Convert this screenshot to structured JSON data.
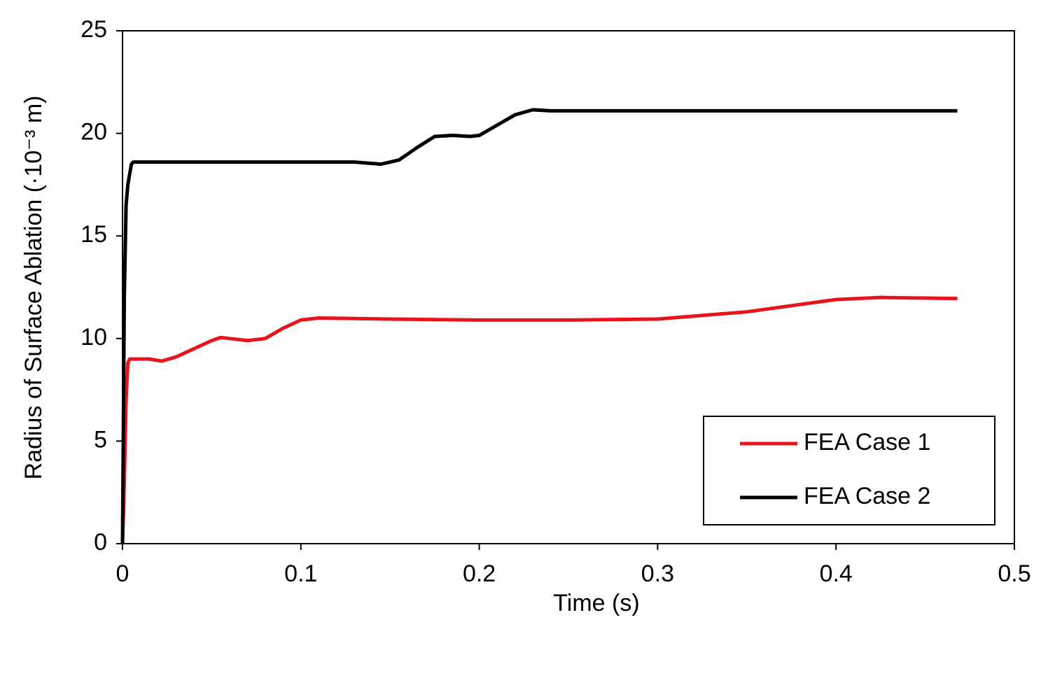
{
  "chart_data": {
    "type": "line",
    "x_label": "Time (s)",
    "y_label": "Radius of Surface Ablation (·10⁻³ m)",
    "xlim": [
      0,
      0.5
    ],
    "xticks": [
      0,
      0.1,
      0.2,
      0.3,
      0.4,
      0.5
    ],
    "ylim": [
      0,
      25
    ],
    "yticks": [
      0,
      5,
      10,
      15,
      20,
      25
    ],
    "grid": false,
    "legend": "lower right",
    "series": [
      {
        "name": "FEA Case 1",
        "color": "#e8141c",
        "x": [
          0,
          0.001,
          0.002,
          0.003,
          0.004,
          0.006,
          0.015,
          0.022,
          0.03,
          0.04,
          0.05,
          0.055,
          0.06,
          0.07,
          0.08,
          0.09,
          0.1,
          0.11,
          0.15,
          0.2,
          0.25,
          0.3,
          0.35,
          0.4,
          0.425,
          0.45,
          0.468
        ],
        "values": [
          0,
          3,
          7,
          8.8,
          9.0,
          9.0,
          9.0,
          8.9,
          9.1,
          9.5,
          9.9,
          10.05,
          10.0,
          9.9,
          10.0,
          10.5,
          10.9,
          11.0,
          10.95,
          10.9,
          10.9,
          10.95,
          11.3,
          11.9,
          12.0,
          11.97,
          11.95
        ]
      },
      {
        "name": "FEA Case 2",
        "color": "#000000",
        "x": [
          0,
          0.001,
          0.002,
          0.003,
          0.005,
          0.006,
          0.1,
          0.13,
          0.145,
          0.155,
          0.165,
          0.175,
          0.185,
          0.195,
          0.2,
          0.21,
          0.22,
          0.23,
          0.24,
          0.25,
          0.3,
          0.468
        ],
        "values": [
          0,
          12,
          16.5,
          17.5,
          18.5,
          18.6,
          18.6,
          18.6,
          18.5,
          18.7,
          19.3,
          19.85,
          19.9,
          19.85,
          19.9,
          20.4,
          20.9,
          21.15,
          21.1,
          21.1,
          21.1,
          21.1
        ]
      }
    ]
  }
}
